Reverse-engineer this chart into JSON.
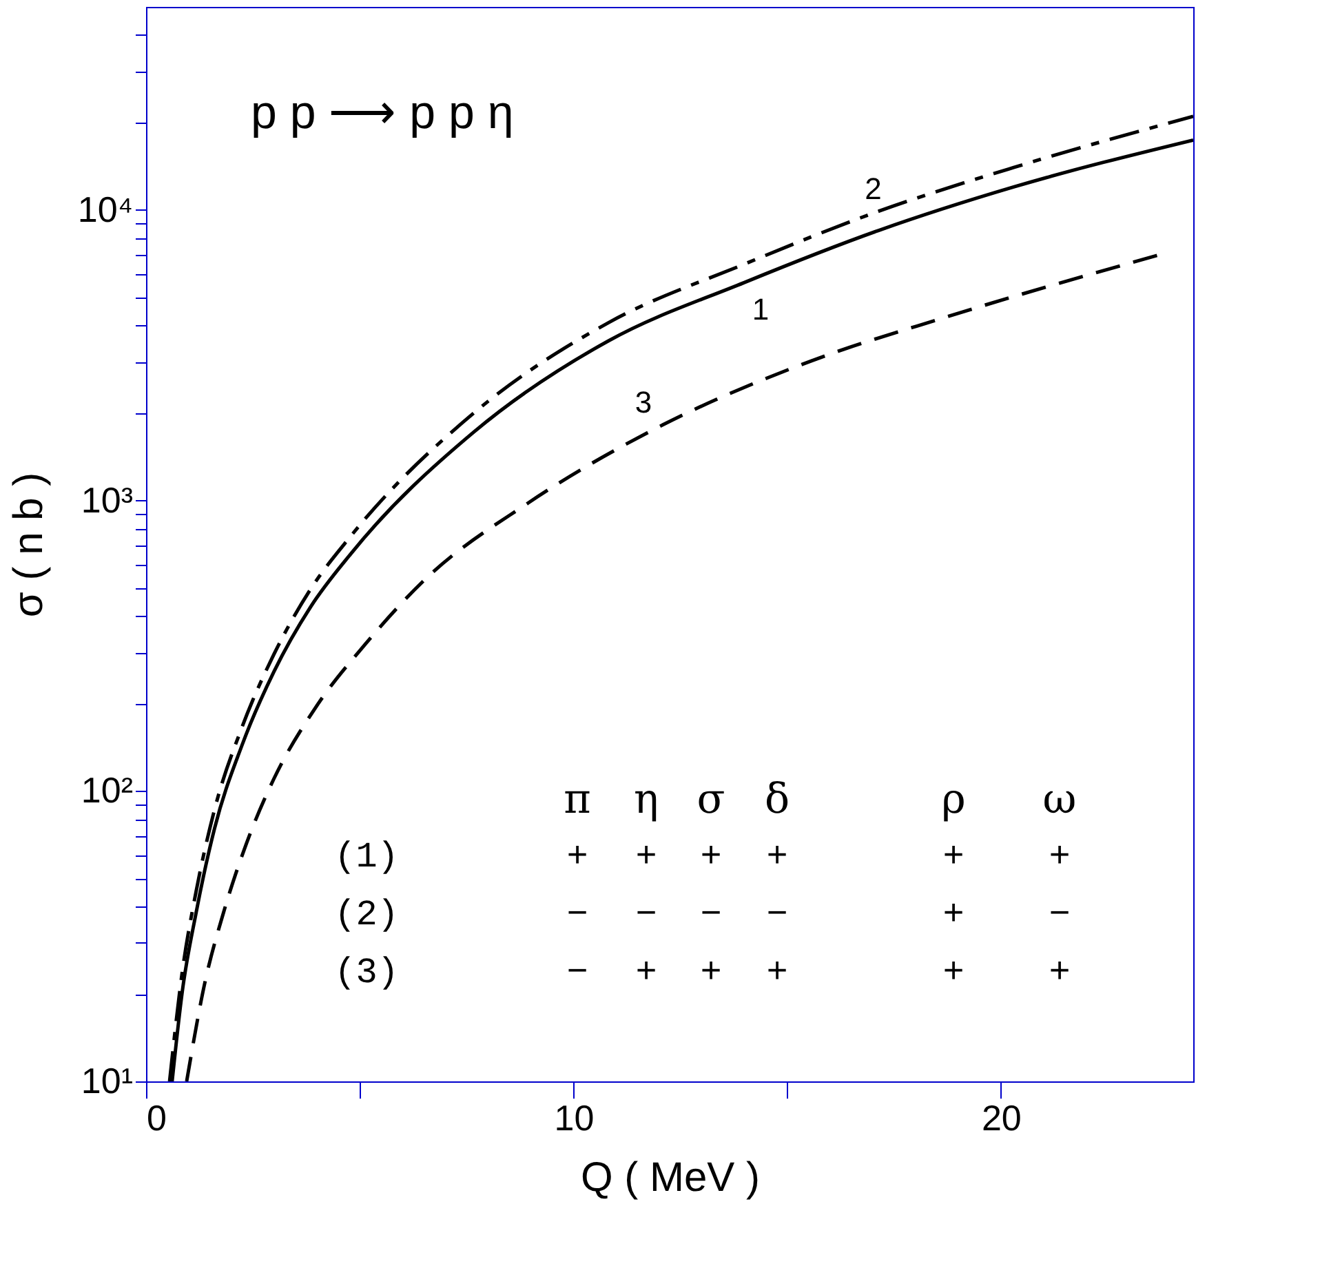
{
  "chart_data": {
    "type": "line",
    "xlabel": "Q ( MeV )",
    "ylabel": "σ ( n b )",
    "xlim": [
      0,
      24.5
    ],
    "ylim": [
      10,
      50000
    ],
    "log": "y",
    "grid": false,
    "xticks": [
      0,
      {
        "value": 5,
        "label": null
      },
      10,
      {
        "value": 15,
        "label": null
      },
      20
    ],
    "yticks": [
      {
        "value": 10,
        "label": "10¹"
      },
      {
        "value": 20,
        "label": null
      },
      {
        "value": 30,
        "label": null
      },
      {
        "value": 40,
        "label": null
      },
      {
        "value": 50,
        "label": null
      },
      {
        "value": 60,
        "label": null
      },
      {
        "value": 70,
        "label": null
      },
      {
        "value": 80,
        "label": null
      },
      {
        "value": 90,
        "label": null
      },
      {
        "value": 100,
        "label": "10²"
      },
      {
        "value": 200,
        "label": null
      },
      {
        "value": 300,
        "label": null
      },
      {
        "value": 400,
        "label": null
      },
      {
        "value": 500,
        "label": null
      },
      {
        "value": 600,
        "label": null
      },
      {
        "value": 700,
        "label": null
      },
      {
        "value": 800,
        "label": null
      },
      {
        "value": 900,
        "label": null
      },
      {
        "value": 1000,
        "label": "10³"
      },
      {
        "value": 2000,
        "label": null
      },
      {
        "value": 3000,
        "label": null
      },
      {
        "value": 4000,
        "label": null
      },
      {
        "value": 5000,
        "label": null
      },
      {
        "value": 6000,
        "label": null
      },
      {
        "value": 7000,
        "label": null
      },
      {
        "value": 8000,
        "label": null
      },
      {
        "value": 9000,
        "label": null
      },
      {
        "value": 10000,
        "label": "10⁴"
      },
      {
        "value": 20000,
        "label": null
      },
      {
        "value": 30000,
        "label": null
      },
      {
        "value": 40000,
        "label": null
      }
    ],
    "series": [
      {
        "name": "1",
        "color": "#000000",
        "line_style": "solid",
        "x": [
          0.61,
          0.85,
          1.17,
          1.6,
          2.24,
          2.99,
          3.85,
          4.81,
          7.67,
          10.83,
          13.99,
          17.14,
          20.3,
          24.5
        ],
        "values": [
          10,
          20.5,
          38,
          74,
          143,
          257,
          430,
          660,
          1720,
          3550,
          5620,
          8500,
          12000,
          17400
        ]
      },
      {
        "name": "2",
        "color": "#000000",
        "line_style": "dashdot",
        "x": [
          0.55,
          0.85,
          1.17,
          1.6,
          2.24,
          2.99,
          3.85,
          4.81,
          7.67,
          10.83,
          13.99,
          17.14,
          20.3,
          24.5
        ],
        "values": [
          10,
          24,
          45,
          86,
          165,
          295,
          495,
          760,
          2000,
          4100,
          6500,
          9900,
          14000,
          21000
        ]
      },
      {
        "name": "3",
        "color": "#000000",
        "line_style": "dashed",
        "x": [
          0.95,
          1.38,
          1.81,
          2.35,
          2.99,
          3.95,
          5.13,
          6.53,
          8.94,
          12.09,
          15.56,
          18.7,
          23.7
        ],
        "values": [
          10,
          22,
          38,
          66,
          110,
          192,
          320,
          535,
          980,
          1820,
          3020,
          4270,
          7000
        ]
      }
    ],
    "annotations": [
      "p p ⟶ p p η",
      "π η σ δ ρ ω",
      "(1) + + + + + +",
      "(2) − − − − + −",
      "(3) − + + + + +"
    ]
  }
}
